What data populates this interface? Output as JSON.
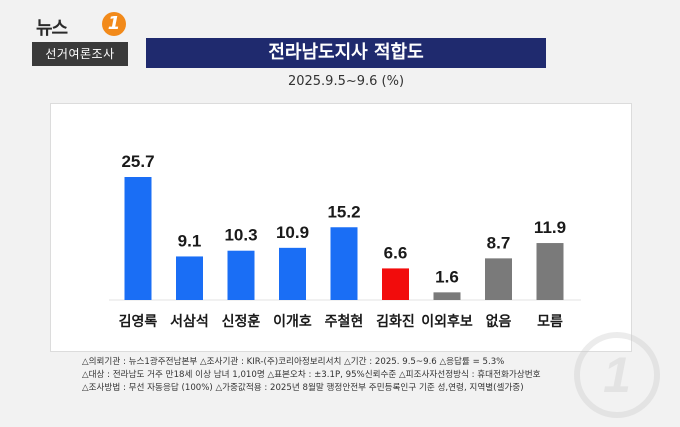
{
  "header": {
    "logo_text": "뉴스",
    "logo_mark": "1",
    "logo_sub": "선거여론조사",
    "title": "전라남도지사 적합도",
    "subtitle": "2025.9.5~9.6 (%)"
  },
  "chart_data": {
    "type": "bar",
    "title": "전라남도지사 적합도",
    "subtitle": "2025.9.5~9.6 (%)",
    "categories": [
      "김영록",
      "서삼석",
      "신정훈",
      "이개호",
      "주철현",
      "김화진",
      "이외후보",
      "없음",
      "모름"
    ],
    "values": [
      25.7,
      9.1,
      10.3,
      10.9,
      15.2,
      6.6,
      1.6,
      8.7,
      11.9
    ],
    "value_labels": [
      "25.7",
      "9.1",
      "10.3",
      "10.9",
      "15.2",
      "6.6",
      "1.6",
      "8.7",
      "11.9"
    ],
    "colors": [
      "#1a6ef5",
      "#1a6ef5",
      "#1a6ef5",
      "#1a6ef5",
      "#1a6ef5",
      "#f20c0c",
      "#7a7a7a",
      "#7a7a7a",
      "#7a7a7a"
    ],
    "ylim": [
      0,
      28
    ],
    "grid": false,
    "xlabel": "",
    "ylabel": ""
  },
  "footnote": {
    "line1": "△의뢰기관 : 뉴스1광주전남본부 △조사기관 : KIR-(주)코리아정보리서치 △기간 : 2025. 9.5~9.6 △응답률 = 5.3%",
    "line2": "△대상 : 전라남도 거주 만18세 이상 남녀 1,010명 △표본오차 : ±3.1P, 95%신뢰수준 △피조사자선정방식 : 휴대전화가상번호",
    "line3": "△조사방법 : 무선 자동응답 (100%) △가중값적용 : 2025년 8월말 행정안전부 주민등록인구 기준 성,연령, 지역별(셀가중)"
  },
  "watermark": {
    "icon": "news1-watermark-icon",
    "text": "1"
  }
}
